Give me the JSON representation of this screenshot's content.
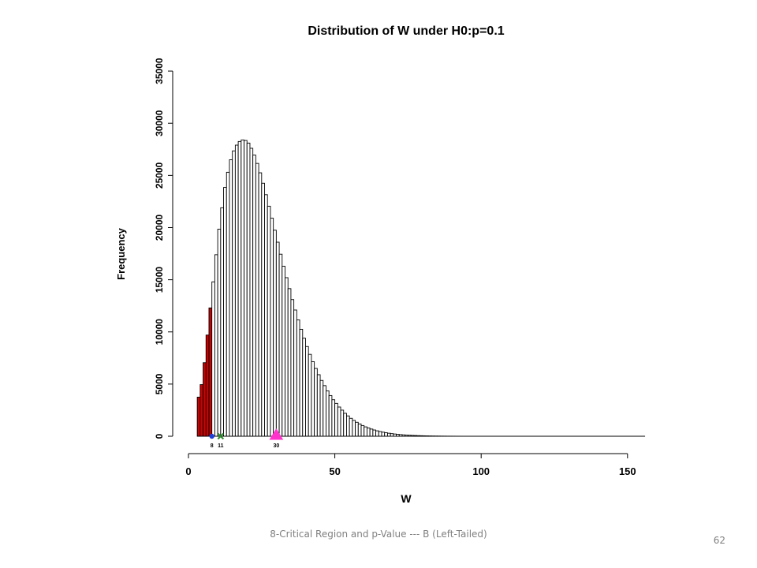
{
  "slide": {
    "footer_text": "8-Critical Region and p-Value --- B (Left-Tailed)",
    "page_number": "62"
  },
  "chart_data": {
    "type": "bar",
    "title": "Distribution of W under H0:p=0.1",
    "xlabel": "W",
    "ylabel": "Frequency",
    "xlim": [
      0,
      155
    ],
    "ylim": [
      0,
      35000
    ],
    "x_ticks": [
      0,
      50,
      100,
      150
    ],
    "y_ticks": [
      0,
      5000,
      10000,
      15000,
      20000,
      25000,
      30000,
      35000
    ],
    "grid": false,
    "bins": {
      "start": 3,
      "width": 1,
      "values": [
        3750,
        4950,
        7050,
        9700,
        12300,
        14800,
        17400,
        19850,
        21900,
        23850,
        25300,
        26500,
        27350,
        27900,
        28250,
        28400,
        28350,
        28100,
        27600,
        26950,
        26150,
        25250,
        24250,
        23150,
        22050,
        20900,
        19750,
        18600,
        17450,
        16300,
        15200,
        14150,
        13100,
        12100,
        11150,
        10250,
        9400,
        8600,
        7850,
        7150,
        6500,
        5900,
        5350,
        4850,
        4350,
        3900,
        3500,
        3150,
        2800,
        2500,
        2200,
        1950,
        1720,
        1520,
        1340,
        1180,
        1030,
        900,
        790,
        690,
        600,
        520,
        450,
        390,
        335,
        290,
        250,
        215,
        185,
        160,
        135,
        115,
        100,
        85,
        72,
        60,
        52,
        44,
        37,
        31,
        26,
        22,
        18,
        15,
        12,
        10,
        8,
        7,
        6,
        5,
        4,
        3,
        3,
        2,
        2,
        1,
        1,
        1,
        1,
        1,
        1
      ]
    },
    "critical_region": {
      "upper": 8,
      "color": "#cc0000"
    },
    "markers": [
      {
        "x": 8,
        "label": "8",
        "shape": "circle",
        "color": "#1f3fd9"
      },
      {
        "x": 11,
        "label": "11",
        "shape": "cross",
        "color": "#2e8b2e"
      },
      {
        "x": 30,
        "label": "30",
        "shape": "triangle",
        "color": "#ff33cc"
      }
    ]
  }
}
